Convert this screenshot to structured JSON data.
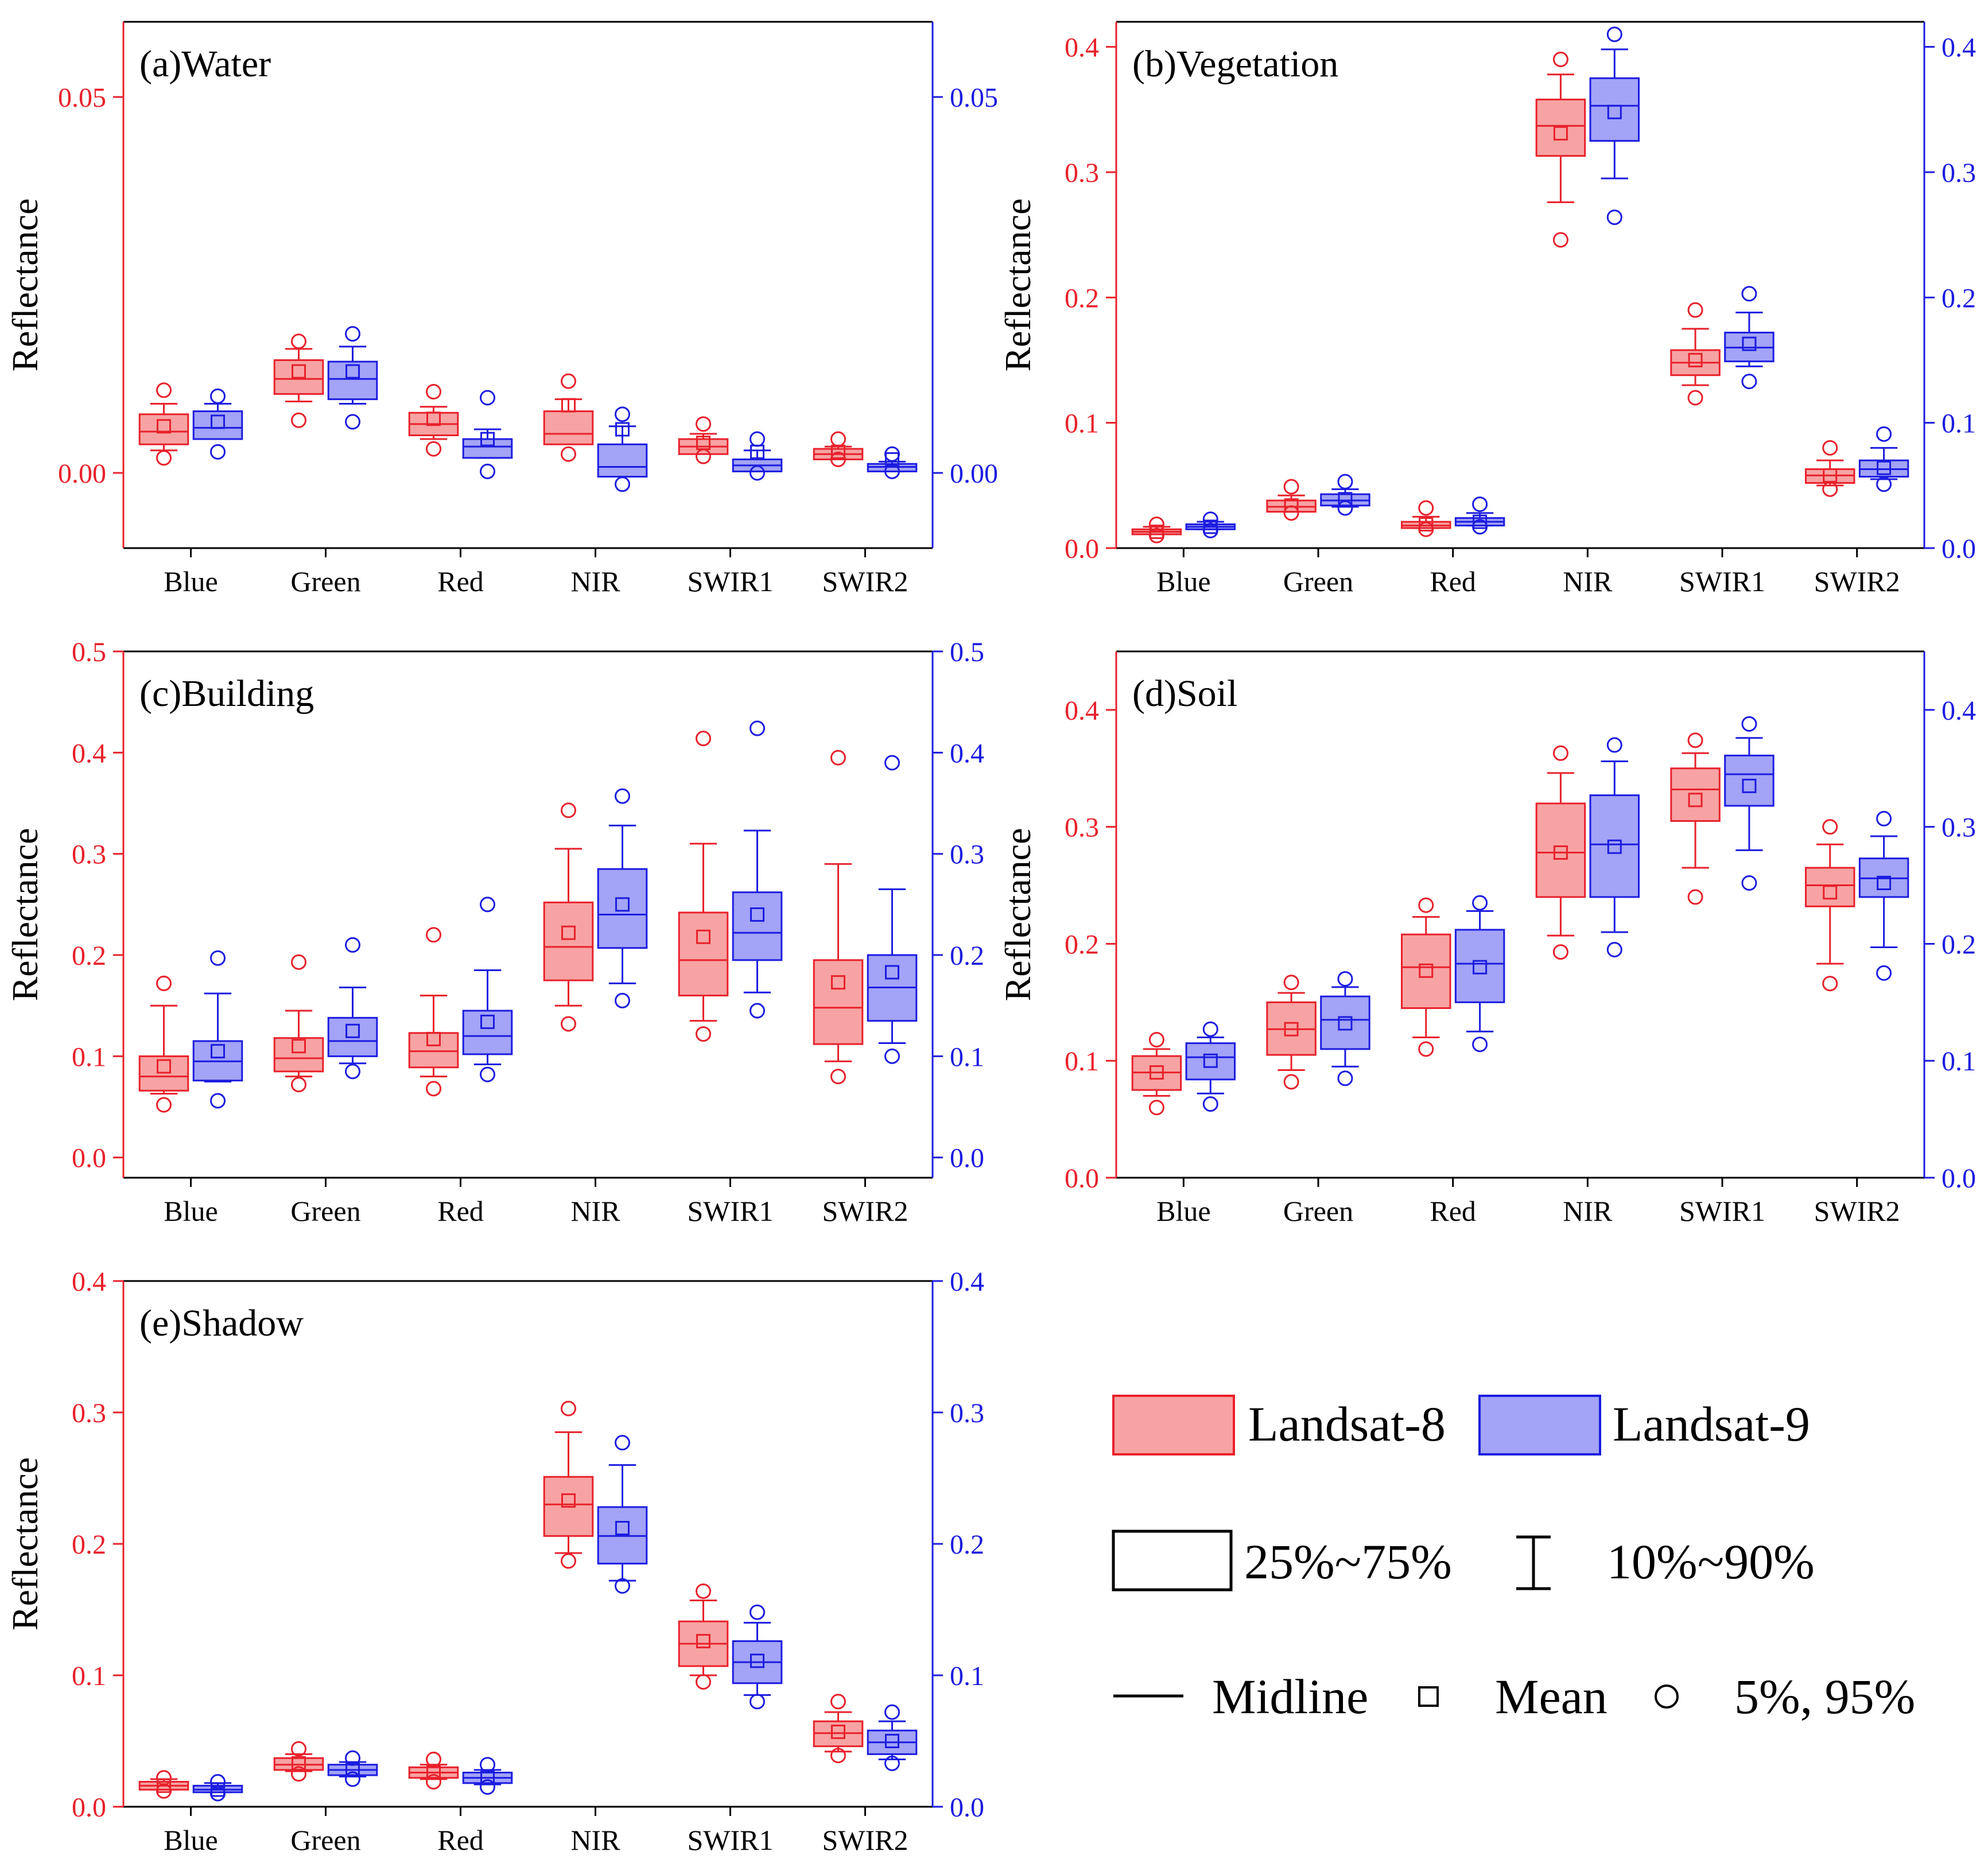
{
  "figure": {
    "legend": {
      "landsat8_label": "Landsat-8",
      "landsat9_label": "Landsat-9",
      "box_label": "25%~75%",
      "whisker_label": "10%~90%",
      "midline_label": "Midline",
      "mean_label": "Mean",
      "outlier_label": "5%, 95%"
    }
  },
  "chart_data": [
    {
      "type": "box",
      "title": "(a)Water",
      "ylabel": "Reflectance",
      "ylim": [
        -0.01,
        0.06
      ],
      "yticks": [
        0.0,
        0.05
      ],
      "categories": [
        "Blue",
        "Green",
        "Red",
        "NIR",
        "SWIR1",
        "SWIR2"
      ],
      "left_axis_color": "#e8212b",
      "right_axis_color": "#1c1ce0",
      "series": [
        {
          "name": "Landsat-8",
          "color": "#e8212b",
          "fill": "#f7a3a3",
          "stats": [
            {
              "p5": 0.002,
              "p10": 0.003,
              "q1": 0.0038,
              "median": 0.0055,
              "q3": 0.0078,
              "p90": 0.0092,
              "p95": 0.011,
              "mean": 0.0062
            },
            {
              "p5": 0.007,
              "p10": 0.0095,
              "q1": 0.0105,
              "median": 0.0125,
              "q3": 0.015,
              "p90": 0.0165,
              "p95": 0.0175,
              "mean": 0.0135
            },
            {
              "p5": 0.0032,
              "p10": 0.0045,
              "q1": 0.005,
              "median": 0.0065,
              "q3": 0.008,
              "p90": 0.0088,
              "p95": 0.0108,
              "mean": 0.0072
            },
            {
              "p5": 0.0025,
              "p10": 0.004,
              "q1": 0.0038,
              "median": 0.0052,
              "q3": 0.0082,
              "p90": 0.0098,
              "p95": 0.0122,
              "mean": 0.009
            },
            {
              "p5": 0.0022,
              "p10": 0.0028,
              "q1": 0.0025,
              "median": 0.0035,
              "q3": 0.0045,
              "p90": 0.0052,
              "p95": 0.0065,
              "mean": 0.004
            },
            {
              "p5": 0.0018,
              "p10": 0.002,
              "q1": 0.0018,
              "median": 0.0025,
              "q3": 0.0032,
              "p90": 0.0035,
              "p95": 0.0045,
              "mean": 0.0028
            }
          ]
        },
        {
          "name": "Landsat-9",
          "color": "#1c1ce0",
          "fill": "#a3a3f7",
          "stats": [
            {
              "p5": 0.0028,
              "p10": 0.0045,
              "q1": 0.0045,
              "median": 0.006,
              "q3": 0.0082,
              "p90": 0.0092,
              "p95": 0.0102,
              "mean": 0.0068
            },
            {
              "p5": 0.0068,
              "p10": 0.0092,
              "q1": 0.0098,
              "median": 0.0125,
              "q3": 0.0148,
              "p90": 0.0168,
              "p95": 0.0185,
              "mean": 0.0135
            },
            {
              "p5": 0.0002,
              "p10": 0.002,
              "q1": 0.002,
              "median": 0.0035,
              "q3": 0.0045,
              "p90": 0.0058,
              "p95": 0.01,
              "mean": 0.0045
            },
            {
              "p5": -0.0015,
              "p10": -0.0005,
              "q1": -0.0005,
              "median": 0.0008,
              "q3": 0.0038,
              "p90": 0.0062,
              "p95": 0.0078,
              "mean": 0.0058
            },
            {
              "p5": 0.0,
              "p10": 0.0002,
              "q1": 0.0002,
              "median": 0.001,
              "q3": 0.0018,
              "p90": 0.003,
              "p95": 0.0045,
              "mean": 0.0028
            },
            {
              "p5": 0.0002,
              "p10": 0.0002,
              "q1": 0.0002,
              "median": 0.0008,
              "q3": 0.0012,
              "p90": 0.0015,
              "p95": 0.0025,
              "mean": 0.0018
            }
          ]
        }
      ]
    },
    {
      "type": "box",
      "title": "(b)Vegetation",
      "ylabel": "Reflectance",
      "ylim": [
        0.0,
        0.42
      ],
      "yticks": [
        0.0,
        0.1,
        0.2,
        0.3,
        0.4
      ],
      "categories": [
        "Blue",
        "Green",
        "Red",
        "NIR",
        "SWIR1",
        "SWIR2"
      ],
      "left_axis_color": "#e8212b",
      "right_axis_color": "#1c1ce0",
      "series": [
        {
          "name": "Landsat-8",
          "color": "#e8212b",
          "fill": "#f7a3a3",
          "stats": [
            {
              "p5": 0.01,
              "p10": 0.011,
              "q1": 0.011,
              "median": 0.013,
              "q3": 0.015,
              "p90": 0.017,
              "p95": 0.019,
              "mean": 0.013
            },
            {
              "p5": 0.028,
              "p10": 0.03,
              "q1": 0.029,
              "median": 0.033,
              "q3": 0.038,
              "p90": 0.042,
              "p95": 0.049,
              "mean": 0.034
            },
            {
              "p5": 0.015,
              "p10": 0.016,
              "q1": 0.016,
              "median": 0.018,
              "q3": 0.021,
              "p90": 0.025,
              "p95": 0.032,
              "mean": 0.019
            },
            {
              "p5": 0.246,
              "p10": 0.276,
              "q1": 0.313,
              "median": 0.337,
              "q3": 0.358,
              "p90": 0.378,
              "p95": 0.39,
              "mean": 0.331
            },
            {
              "p5": 0.12,
              "p10": 0.13,
              "q1": 0.138,
              "median": 0.148,
              "q3": 0.158,
              "p90": 0.175,
              "p95": 0.19,
              "mean": 0.15
            },
            {
              "p5": 0.047,
              "p10": 0.05,
              "q1": 0.052,
              "median": 0.058,
              "q3": 0.063,
              "p90": 0.07,
              "p95": 0.08,
              "mean": 0.058
            }
          ]
        },
        {
          "name": "Landsat-9",
          "color": "#1c1ce0",
          "fill": "#a3a3f7",
          "stats": [
            {
              "p5": 0.014,
              "p10": 0.015,
              "q1": 0.015,
              "median": 0.017,
              "q3": 0.019,
              "p90": 0.021,
              "p95": 0.023,
              "mean": 0.017
            },
            {
              "p5": 0.032,
              "p10": 0.033,
              "q1": 0.034,
              "median": 0.038,
              "q3": 0.043,
              "p90": 0.047,
              "p95": 0.053,
              "mean": 0.039
            },
            {
              "p5": 0.017,
              "p10": 0.018,
              "q1": 0.018,
              "median": 0.021,
              "q3": 0.024,
              "p90": 0.028,
              "p95": 0.035,
              "mean": 0.021
            },
            {
              "p5": 0.264,
              "p10": 0.295,
              "q1": 0.325,
              "median": 0.353,
              "q3": 0.375,
              "p90": 0.398,
              "p95": 0.41,
              "mean": 0.348
            },
            {
              "p5": 0.133,
              "p10": 0.145,
              "q1": 0.149,
              "median": 0.16,
              "q3": 0.172,
              "p90": 0.188,
              "p95": 0.203,
              "mean": 0.163
            },
            {
              "p5": 0.051,
              "p10": 0.055,
              "q1": 0.057,
              "median": 0.063,
              "q3": 0.07,
              "p90": 0.08,
              "p95": 0.091,
              "mean": 0.064
            }
          ]
        }
      ]
    },
    {
      "type": "box",
      "title": "(c)Building",
      "ylabel": "Reflectance",
      "ylim": [
        -0.02,
        0.5
      ],
      "yticks": [
        0.0,
        0.1,
        0.2,
        0.3,
        0.4,
        0.5
      ],
      "categories": [
        "Blue",
        "Green",
        "Red",
        "NIR",
        "SWIR1",
        "SWIR2"
      ],
      "left_axis_color": "#e8212b",
      "right_axis_color": "#1c1ce0",
      "series": [
        {
          "name": "Landsat-8",
          "color": "#e8212b",
          "fill": "#f7a3a3",
          "stats": [
            {
              "p5": 0.052,
              "p10": 0.063,
              "q1": 0.066,
              "median": 0.08,
              "q3": 0.1,
              "p90": 0.15,
              "p95": 0.172,
              "mean": 0.09
            },
            {
              "p5": 0.072,
              "p10": 0.08,
              "q1": 0.085,
              "median": 0.098,
              "q3": 0.118,
              "p90": 0.145,
              "p95": 0.193,
              "mean": 0.11
            },
            {
              "p5": 0.068,
              "p10": 0.08,
              "q1": 0.089,
              "median": 0.105,
              "q3": 0.123,
              "p90": 0.16,
              "p95": 0.22,
              "mean": 0.117
            },
            {
              "p5": 0.132,
              "p10": 0.15,
              "q1": 0.175,
              "median": 0.208,
              "q3": 0.252,
              "p90": 0.305,
              "p95": 0.343,
              "mean": 0.222
            },
            {
              "p5": 0.122,
              "p10": 0.135,
              "q1": 0.16,
              "median": 0.195,
              "q3": 0.242,
              "p90": 0.31,
              "p95": 0.414,
              "mean": 0.218
            },
            {
              "p5": 0.08,
              "p10": 0.095,
              "q1": 0.112,
              "median": 0.148,
              "q3": 0.195,
              "p90": 0.29,
              "p95": 0.395,
              "mean": 0.173
            }
          ]
        },
        {
          "name": "Landsat-9",
          "color": "#1c1ce0",
          "fill": "#a3a3f7",
          "stats": [
            {
              "p5": 0.056,
              "p10": 0.075,
              "q1": 0.076,
              "median": 0.095,
              "q3": 0.115,
              "p90": 0.162,
              "p95": 0.197,
              "mean": 0.105
            },
            {
              "p5": 0.085,
              "p10": 0.093,
              "q1": 0.1,
              "median": 0.115,
              "q3": 0.138,
              "p90": 0.168,
              "p95": 0.21,
              "mean": 0.125
            },
            {
              "p5": 0.082,
              "p10": 0.092,
              "q1": 0.102,
              "median": 0.12,
              "q3": 0.145,
              "p90": 0.185,
              "p95": 0.25,
              "mean": 0.134
            },
            {
              "p5": 0.155,
              "p10": 0.172,
              "q1": 0.207,
              "median": 0.24,
              "q3": 0.285,
              "p90": 0.328,
              "p95": 0.357,
              "mean": 0.25
            },
            {
              "p5": 0.145,
              "p10": 0.163,
              "q1": 0.195,
              "median": 0.222,
              "q3": 0.262,
              "p90": 0.323,
              "p95": 0.424,
              "mean": 0.24
            },
            {
              "p5": 0.1,
              "p10": 0.113,
              "q1": 0.135,
              "median": 0.168,
              "q3": 0.2,
              "p90": 0.265,
              "p95": 0.39,
              "mean": 0.183
            }
          ]
        }
      ]
    },
    {
      "type": "box",
      "title": "(d)Soil",
      "ylabel": "Reflectance",
      "ylim": [
        0.0,
        0.45
      ],
      "yticks": [
        0.0,
        0.1,
        0.2,
        0.3,
        0.4
      ],
      "categories": [
        "Blue",
        "Green",
        "Red",
        "NIR",
        "SWIR1",
        "SWIR2"
      ],
      "left_axis_color": "#e8212b",
      "right_axis_color": "#1c1ce0",
      "series": [
        {
          "name": "Landsat-8",
          "color": "#e8212b",
          "fill": "#f7a3a3",
          "stats": [
            {
              "p5": 0.06,
              "p10": 0.07,
              "q1": 0.075,
              "median": 0.09,
              "q3": 0.104,
              "p90": 0.11,
              "p95": 0.118,
              "mean": 0.09
            },
            {
              "p5": 0.082,
              "p10": 0.092,
              "q1": 0.105,
              "median": 0.127,
              "q3": 0.15,
              "p90": 0.158,
              "p95": 0.167,
              "mean": 0.127
            },
            {
              "p5": 0.11,
              "p10": 0.12,
              "q1": 0.145,
              "median": 0.18,
              "q3": 0.208,
              "p90": 0.223,
              "p95": 0.233,
              "mean": 0.177
            },
            {
              "p5": 0.193,
              "p10": 0.207,
              "q1": 0.24,
              "median": 0.278,
              "q3": 0.32,
              "p90": 0.346,
              "p95": 0.363,
              "mean": 0.278
            },
            {
              "p5": 0.24,
              "p10": 0.265,
              "q1": 0.305,
              "median": 0.332,
              "q3": 0.35,
              "p90": 0.363,
              "p95": 0.374,
              "mean": 0.323
            },
            {
              "p5": 0.166,
              "p10": 0.183,
              "q1": 0.232,
              "median": 0.25,
              "q3": 0.265,
              "p90": 0.285,
              "p95": 0.3,
              "mean": 0.244
            }
          ]
        },
        {
          "name": "Landsat-9",
          "color": "#1c1ce0",
          "fill": "#a3a3f7",
          "stats": [
            {
              "p5": 0.063,
              "p10": 0.072,
              "q1": 0.084,
              "median": 0.103,
              "q3": 0.115,
              "p90": 0.12,
              "p95": 0.127,
              "mean": 0.1
            },
            {
              "p5": 0.085,
              "p10": 0.095,
              "q1": 0.11,
              "median": 0.135,
              "q3": 0.155,
              "p90": 0.163,
              "p95": 0.17,
              "mean": 0.132
            },
            {
              "p5": 0.114,
              "p10": 0.125,
              "q1": 0.15,
              "median": 0.183,
              "q3": 0.212,
              "p90": 0.228,
              "p95": 0.235,
              "mean": 0.18
            },
            {
              "p5": 0.195,
              "p10": 0.21,
              "q1": 0.24,
              "median": 0.285,
              "q3": 0.327,
              "p90": 0.356,
              "p95": 0.37,
              "mean": 0.283
            },
            {
              "p5": 0.252,
              "p10": 0.28,
              "q1": 0.318,
              "median": 0.345,
              "q3": 0.361,
              "p90": 0.376,
              "p95": 0.388,
              "mean": 0.335
            },
            {
              "p5": 0.175,
              "p10": 0.197,
              "q1": 0.24,
              "median": 0.256,
              "q3": 0.273,
              "p90": 0.292,
              "p95": 0.307,
              "mean": 0.252
            }
          ]
        }
      ]
    },
    {
      "type": "box",
      "title": "(e)Shadow",
      "ylabel": "Reflectance",
      "ylim": [
        0.0,
        0.4
      ],
      "yticks": [
        0.0,
        0.1,
        0.2,
        0.3,
        0.4
      ],
      "categories": [
        "Blue",
        "Green",
        "Red",
        "NIR",
        "SWIR1",
        "SWIR2"
      ],
      "left_axis_color": "#e8212b",
      "right_axis_color": "#1c1ce0",
      "series": [
        {
          "name": "Landsat-8",
          "color": "#e8212b",
          "fill": "#f7a3a3",
          "stats": [
            {
              "p5": 0.012,
              "p10": 0.013,
              "q1": 0.013,
              "median": 0.016,
              "q3": 0.019,
              "p90": 0.021,
              "p95": 0.022,
              "mean": 0.016
            },
            {
              "p5": 0.025,
              "p10": 0.027,
              "q1": 0.028,
              "median": 0.032,
              "q3": 0.037,
              "p90": 0.04,
              "p95": 0.044,
              "mean": 0.033
            },
            {
              "p5": 0.019,
              "p10": 0.021,
              "q1": 0.022,
              "median": 0.026,
              "q3": 0.03,
              "p90": 0.032,
              "p95": 0.036,
              "mean": 0.026
            },
            {
              "p5": 0.187,
              "p10": 0.193,
              "q1": 0.206,
              "median": 0.23,
              "q3": 0.251,
              "p90": 0.285,
              "p95": 0.303,
              "mean": 0.233
            },
            {
              "p5": 0.095,
              "p10": 0.1,
              "q1": 0.107,
              "median": 0.124,
              "q3": 0.141,
              "p90": 0.157,
              "p95": 0.164,
              "mean": 0.126
            },
            {
              "p5": 0.039,
              "p10": 0.042,
              "q1": 0.046,
              "median": 0.056,
              "q3": 0.065,
              "p90": 0.072,
              "p95": 0.08,
              "mean": 0.057
            }
          ]
        },
        {
          "name": "Landsat-9",
          "color": "#1c1ce0",
          "fill": "#a3a3f7",
          "stats": [
            {
              "p5": 0.01,
              "p10": 0.011,
              "q1": 0.011,
              "median": 0.013,
              "q3": 0.016,
              "p90": 0.018,
              "p95": 0.019,
              "mean": 0.013
            },
            {
              "p5": 0.021,
              "p10": 0.023,
              "q1": 0.024,
              "median": 0.028,
              "q3": 0.032,
              "p90": 0.034,
              "p95": 0.037,
              "mean": 0.028
            },
            {
              "p5": 0.015,
              "p10": 0.017,
              "q1": 0.018,
              "median": 0.022,
              "q3": 0.026,
              "p90": 0.028,
              "p95": 0.032,
              "mean": 0.022
            },
            {
              "p5": 0.168,
              "p10": 0.172,
              "q1": 0.185,
              "median": 0.206,
              "q3": 0.228,
              "p90": 0.26,
              "p95": 0.277,
              "mean": 0.212
            },
            {
              "p5": 0.08,
              "p10": 0.085,
              "q1": 0.094,
              "median": 0.11,
              "q3": 0.126,
              "p90": 0.14,
              "p95": 0.148,
              "mean": 0.111
            },
            {
              "p5": 0.033,
              "p10": 0.036,
              "q1": 0.04,
              "median": 0.049,
              "q3": 0.058,
              "p90": 0.065,
              "p95": 0.072,
              "mean": 0.05
            }
          ]
        }
      ]
    }
  ]
}
